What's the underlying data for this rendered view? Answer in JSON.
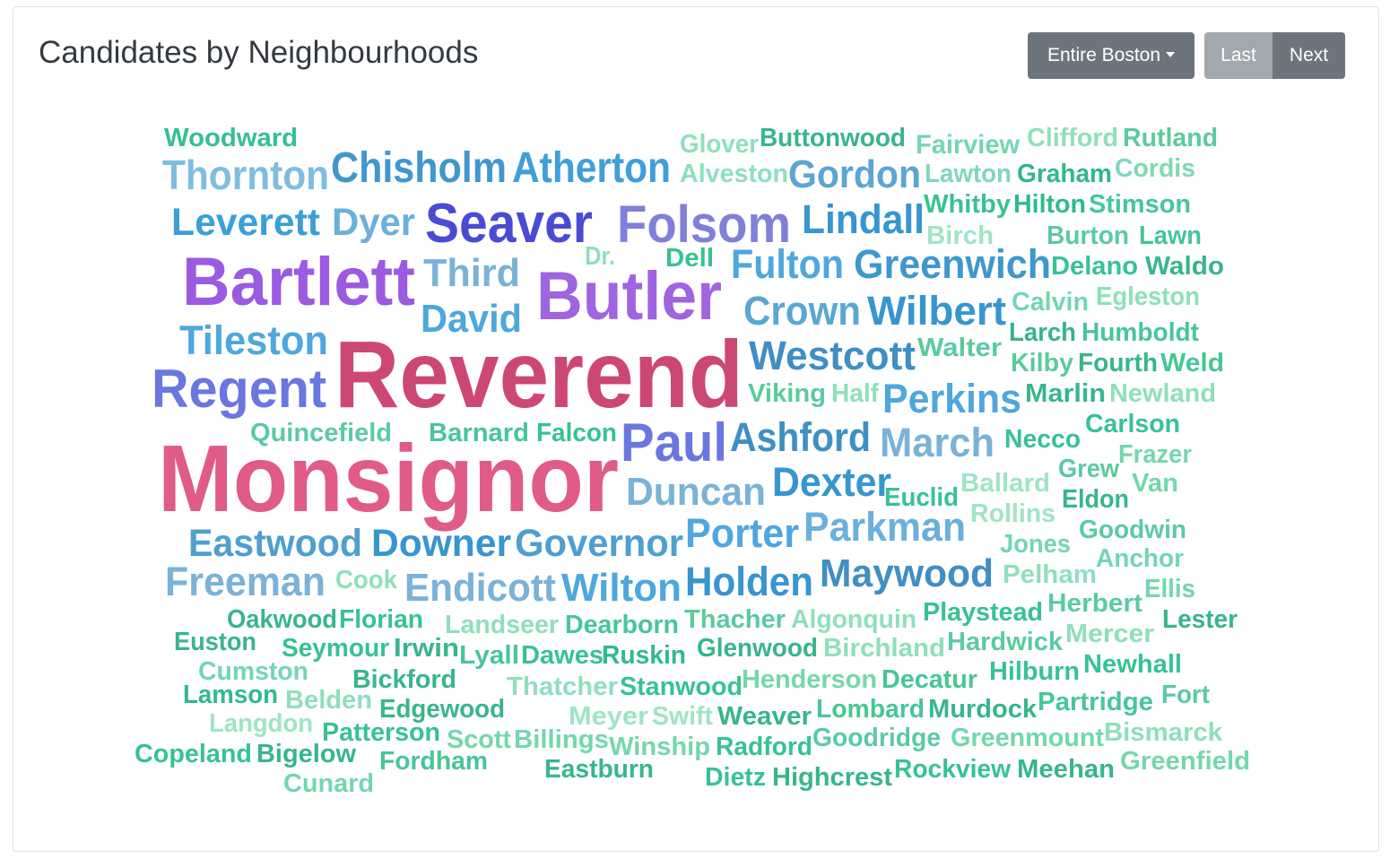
{
  "header": {
    "title": "Candidates by Neighbourhoods",
    "area_dropdown_label": "Entire Boston",
    "last_label": "Last",
    "next_label": "Next"
  },
  "colors": {
    "button_primary": "#6c757d",
    "button_disabled": "#a1a8ae",
    "title_text": "#343a40"
  },
  "word_cloud": {
    "words": [
      {
        "text": "Woodward",
        "color": "#35c08f"
      },
      {
        "text": "Thornton",
        "color": "#7fbde0"
      },
      {
        "text": "Chisholm",
        "color": "#4197cd"
      },
      {
        "text": "Atherton",
        "color": "#3f9fd8"
      },
      {
        "text": "Glover",
        "color": "#8ee0bc"
      },
      {
        "text": "Buttonwood",
        "color": "#38b688"
      },
      {
        "text": "Fairview",
        "color": "#73d7ad"
      },
      {
        "text": "Clifford",
        "color": "#8fdfbd"
      },
      {
        "text": "Rutland",
        "color": "#5bcb9f"
      },
      {
        "text": "Alveston",
        "color": "#8fdfbd"
      },
      {
        "text": "Gordon",
        "color": "#5aa6d4"
      },
      {
        "text": "Lawton",
        "color": "#7fd8b4"
      },
      {
        "text": "Graham",
        "color": "#30b887"
      },
      {
        "text": "Cordis",
        "color": "#7fd8b4"
      },
      {
        "text": "Leverett",
        "color": "#3b9fd8"
      },
      {
        "text": "Dyer",
        "color": "#6ab0dc"
      },
      {
        "text": "Seaver",
        "color": "#4a4bd3"
      },
      {
        "text": "Folsom",
        "color": "#8080d8"
      },
      {
        "text": "Lindall",
        "color": "#3795cf"
      },
      {
        "text": "Whitby",
        "color": "#36c38f"
      },
      {
        "text": "Hilton",
        "color": "#2fbb88"
      },
      {
        "text": "Stimson",
        "color": "#47c696"
      },
      {
        "text": "Birch",
        "color": "#9fe4c5"
      },
      {
        "text": "Burton",
        "color": "#5bcb9f"
      },
      {
        "text": "Lawn",
        "color": "#46c494"
      },
      {
        "text": "Bartlett",
        "color": "#9b5ae0"
      },
      {
        "text": "Third",
        "color": "#7ab2d8"
      },
      {
        "text": "Dr.",
        "color": "#8ee0bc"
      },
      {
        "text": "Dell",
        "color": "#36c38f"
      },
      {
        "text": "Butler",
        "color": "#a064e0"
      },
      {
        "text": "Fulton",
        "color": "#4ea7de"
      },
      {
        "text": "Greenwich",
        "color": "#3f98cc"
      },
      {
        "text": "Delano",
        "color": "#36c38f"
      },
      {
        "text": "Waldo",
        "color": "#38b688"
      },
      {
        "text": "David",
        "color": "#4ea7de"
      },
      {
        "text": "Crown",
        "color": "#5aa6d4"
      },
      {
        "text": "Wilbert",
        "color": "#3795cf"
      },
      {
        "text": "Calvin",
        "color": "#73d7ad"
      },
      {
        "text": "Egleston",
        "color": "#8ee0bc"
      },
      {
        "text": "Tileston",
        "color": "#4ea7de"
      },
      {
        "text": "Reverend",
        "color": "#cc4873"
      },
      {
        "text": "Larch",
        "color": "#36b586"
      },
      {
        "text": "Humboldt",
        "color": "#47c696"
      },
      {
        "text": "Regent",
        "color": "#6a77e0"
      },
      {
        "text": "Westcott",
        "color": "#3f8fc4"
      },
      {
        "text": "Walter",
        "color": "#5bcb9f"
      },
      {
        "text": "Kilby",
        "color": "#5bcb9f"
      },
      {
        "text": "Fourth",
        "color": "#38b688"
      },
      {
        "text": "Weld",
        "color": "#47c696"
      },
      {
        "text": "Viking",
        "color": "#5bcb9f"
      },
      {
        "text": "Half",
        "color": "#8fdfbd"
      },
      {
        "text": "Perkins",
        "color": "#4ea7de"
      },
      {
        "text": "Marlin",
        "color": "#38b688"
      },
      {
        "text": "Newland",
        "color": "#8fdfbd"
      },
      {
        "text": "Quincefield",
        "color": "#5bcb9f"
      },
      {
        "text": "Barnard",
        "color": "#47c696"
      },
      {
        "text": "Falcon",
        "color": "#36c38f"
      },
      {
        "text": "Paul",
        "color": "#6a77e0"
      },
      {
        "text": "Ashford",
        "color": "#3f8fc4"
      },
      {
        "text": "March",
        "color": "#7ab2d8"
      },
      {
        "text": "Necco",
        "color": "#36c38f"
      },
      {
        "text": "Carlson",
        "color": "#36c38f"
      },
      {
        "text": "Monsignor",
        "color": "#e05a8a"
      },
      {
        "text": "Frazer",
        "color": "#73d7ad"
      },
      {
        "text": "Duncan",
        "color": "#7ab2d8"
      },
      {
        "text": "Dexter",
        "color": "#3795cf"
      },
      {
        "text": "Ballard",
        "color": "#9fe4c5"
      },
      {
        "text": "Grew",
        "color": "#5bcb9f"
      },
      {
        "text": "Euclid",
        "color": "#36c38f"
      },
      {
        "text": "Van",
        "color": "#73d7ad"
      },
      {
        "text": "Eldon",
        "color": "#38b688"
      },
      {
        "text": "Rollins",
        "color": "#9fe4c5"
      },
      {
        "text": "Eastwood",
        "color": "#4f9fcf"
      },
      {
        "text": "Downer",
        "color": "#3795cf"
      },
      {
        "text": "Governor",
        "color": "#4f9fcf"
      },
      {
        "text": "Porter",
        "color": "#4ea7de"
      },
      {
        "text": "Parkman",
        "color": "#6ab0dc"
      },
      {
        "text": "Goodwin",
        "color": "#5bcb9f"
      },
      {
        "text": "Jones",
        "color": "#73d7ad"
      },
      {
        "text": "Anchor",
        "color": "#73d7ad"
      },
      {
        "text": "Freeman",
        "color": "#7ab2d8"
      },
      {
        "text": "Cook",
        "color": "#8ee0bc"
      },
      {
        "text": "Endicott",
        "color": "#7ab2d8"
      },
      {
        "text": "Wilton",
        "color": "#4ea7de"
      },
      {
        "text": "Holden",
        "color": "#3795cf"
      },
      {
        "text": "Maywood",
        "color": "#3f8fc4"
      },
      {
        "text": "Pelham",
        "color": "#8fdfbd"
      },
      {
        "text": "Herbert",
        "color": "#5bcb9f"
      },
      {
        "text": "Ellis",
        "color": "#73d7ad"
      },
      {
        "text": "Oakwood",
        "color": "#38b688"
      },
      {
        "text": "Florian",
        "color": "#36c38f"
      },
      {
        "text": "Landseer",
        "color": "#8fdfbd"
      },
      {
        "text": "Dearborn",
        "color": "#47c696"
      },
      {
        "text": "Thacher",
        "color": "#5bcb9f"
      },
      {
        "text": "Algonquin",
        "color": "#8fdfbd"
      },
      {
        "text": "Playstead",
        "color": "#36c38f"
      },
      {
        "text": "Lester",
        "color": "#38b688"
      },
      {
        "text": "Euston",
        "color": "#38b688"
      },
      {
        "text": "Seymour",
        "color": "#36c38f"
      },
      {
        "text": "Irwin",
        "color": "#38b688"
      },
      {
        "text": "Lyall",
        "color": "#47c696"
      },
      {
        "text": "Dawes",
        "color": "#36c38f"
      },
      {
        "text": "Ruskin",
        "color": "#2fbb88"
      },
      {
        "text": "Glenwood",
        "color": "#38b688"
      },
      {
        "text": "Birchland",
        "color": "#8fdfbd"
      },
      {
        "text": "Hardwick",
        "color": "#5bcb9f"
      },
      {
        "text": "Mercer",
        "color": "#8fdfbd"
      },
      {
        "text": "Cumston",
        "color": "#73d7ad"
      },
      {
        "text": "Bickford",
        "color": "#38b688"
      },
      {
        "text": "Thatcher",
        "color": "#8fdfbd"
      },
      {
        "text": "Stanwood",
        "color": "#36c38f"
      },
      {
        "text": "Henderson",
        "color": "#73d7ad"
      },
      {
        "text": "Decatur",
        "color": "#47c696"
      },
      {
        "text": "Hilburn",
        "color": "#36c38f"
      },
      {
        "text": "Newhall",
        "color": "#36c38f"
      },
      {
        "text": "Lamson",
        "color": "#2fbb88"
      },
      {
        "text": "Belden",
        "color": "#8fdfbd"
      },
      {
        "text": "Edgewood",
        "color": "#38b688"
      },
      {
        "text": "Lombard",
        "color": "#47c696"
      },
      {
        "text": "Murdock",
        "color": "#38b688"
      },
      {
        "text": "Partridge",
        "color": "#47c696"
      },
      {
        "text": "Fort",
        "color": "#5bcb9f"
      },
      {
        "text": "Langdon",
        "color": "#9fe4c5"
      },
      {
        "text": "Meyer",
        "color": "#9fe4c5"
      },
      {
        "text": "Swift",
        "color": "#9fe4c5"
      },
      {
        "text": "Weaver",
        "color": "#38b688"
      },
      {
        "text": "Patterson",
        "color": "#36c38f"
      },
      {
        "text": "Scott",
        "color": "#73d7ad"
      },
      {
        "text": "Billings",
        "color": "#73d7ad"
      },
      {
        "text": "Winship",
        "color": "#73d7ad"
      },
      {
        "text": "Radford",
        "color": "#36c38f"
      },
      {
        "text": "Goodridge",
        "color": "#5bcb9f"
      },
      {
        "text": "Greenmount",
        "color": "#73d7ad"
      },
      {
        "text": "Bismarck",
        "color": "#8fdfbd"
      },
      {
        "text": "Copeland",
        "color": "#36c38f"
      },
      {
        "text": "Bigelow",
        "color": "#38b688"
      },
      {
        "text": "Fordham",
        "color": "#47c696"
      },
      {
        "text": "Eastburn",
        "color": "#38b688"
      },
      {
        "text": "Dietz",
        "color": "#36c38f"
      },
      {
        "text": "Highcrest",
        "color": "#38b688"
      },
      {
        "text": "Rockview",
        "color": "#36c38f"
      },
      {
        "text": "Meehan",
        "color": "#38b688"
      },
      {
        "text": "Greenfield",
        "color": "#73d7ad"
      },
      {
        "text": "Cunard",
        "color": "#73d7ad"
      }
    ]
  }
}
